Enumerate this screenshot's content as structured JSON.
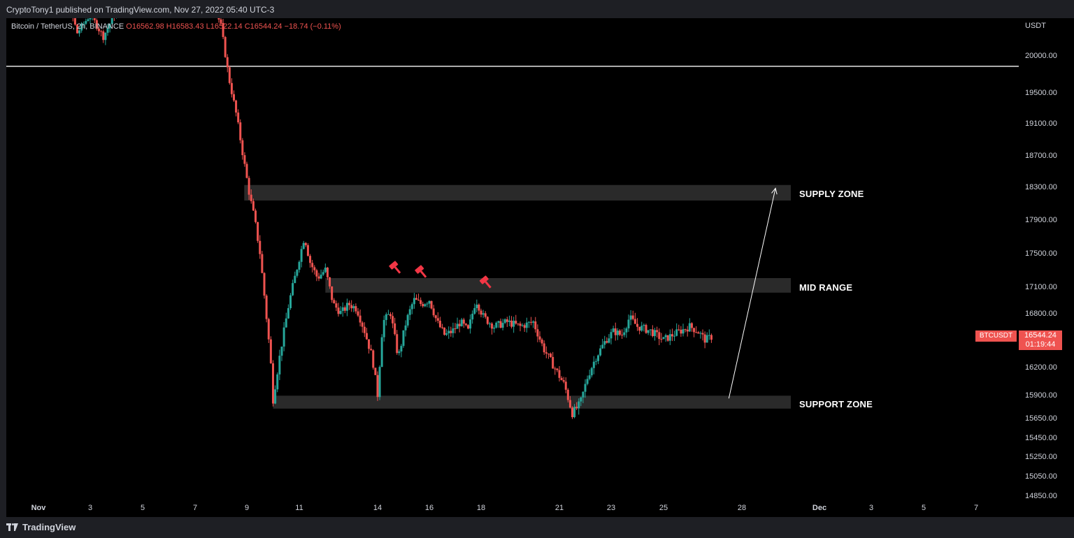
{
  "header": {
    "publisher": "CryptoTony1 published on TradingView.com, Nov 27, 2022 05:40 UTC-3"
  },
  "footer": {
    "brand": "TradingView"
  },
  "legend": {
    "symbol": "Bitcoin / TetherUS, 2h, BINANCE",
    "o": "O16562.98",
    "h": "H16583.43",
    "l": "L16522.14",
    "c": "C16544.24",
    "change": "−18.74 (−0.11%)"
  },
  "price_axis": {
    "unit": "USDT"
  },
  "last_price": {
    "symbol": "BTCUSDT",
    "price": "16544.24",
    "countdown": "01:19:44"
  },
  "zones": {
    "supply": "SUPPLY ZONE",
    "mid": "MID RANGE",
    "support": "SUPPORT ZONE"
  },
  "colors": {
    "background": "#000000",
    "bull": "#26a69a",
    "bear": "#ef5350",
    "zone": "#2a2a2a",
    "label": "#ffffff"
  },
  "chart_data": {
    "type": "candlestick",
    "title": "Bitcoin / TetherUS, 2h, BINANCE",
    "y_ticks": [
      20000,
      19500,
      19100,
      18700,
      18300,
      17900,
      17500,
      17100,
      16800,
      16200,
      15900,
      15650,
      15450,
      15250,
      15050,
      14850
    ],
    "y_tick_labels": [
      "20000.00",
      "19500.00",
      "19100.00",
      "18700.00",
      "18300.00",
      "17900.00",
      "17500.00",
      "17100.00",
      "16800.00",
      "16200.00",
      "15900.00",
      "15650.00",
      "15450.00",
      "15250.00",
      "15050.00",
      "14850.00"
    ],
    "x_tick_labels": [
      "Nov",
      "3",
      "5",
      "7",
      "9",
      "11",
      "14",
      "16",
      "18",
      "21",
      "23",
      "25",
      "28",
      "Dec",
      "3",
      "5",
      "7"
    ],
    "x_ticks_day": [
      1,
      3,
      5,
      7,
      9,
      11,
      14,
      16,
      18,
      21,
      23,
      25,
      28,
      31,
      33,
      35,
      37
    ],
    "horizontal_line": 19850,
    "zones": [
      {
        "name": "SUPPLY ZONE",
        "low": 18130,
        "high": 18320
      },
      {
        "name": "MID RANGE",
        "low": 17030,
        "high": 17200
      },
      {
        "name": "SUPPORT ZONE",
        "low": 15750,
        "high": 15890
      }
    ],
    "arrow": {
      "from_day": 27.5,
      "from_price": 15860,
      "to_day": 29.3,
      "to_price": 18280
    },
    "markers_day": [
      14.3,
      15.3,
      17.8
    ],
    "series": [
      {
        "day": 1.0,
        "price": 20700
      },
      {
        "day": 2.0,
        "price": 20900
      },
      {
        "day": 2.5,
        "price": 20300
      },
      {
        "day": 3.0,
        "price": 20550
      },
      {
        "day": 3.5,
        "price": 20250
      },
      {
        "day": 4.0,
        "price": 20600
      },
      {
        "day": 4.5,
        "price": 20900
      },
      {
        "day": 5.0,
        "price": 21000
      },
      {
        "day": 6.0,
        "price": 21100
      },
      {
        "day": 7.0,
        "price": 21050
      },
      {
        "day": 7.5,
        "price": 20900
      },
      {
        "day": 8.0,
        "price": 20400
      },
      {
        "day": 8.3,
        "price": 19700
      },
      {
        "day": 8.6,
        "price": 19200
      },
      {
        "day": 8.9,
        "price": 18600
      },
      {
        "day": 9.1,
        "price": 18200
      },
      {
        "day": 9.3,
        "price": 17900
      },
      {
        "day": 9.5,
        "price": 17500
      },
      {
        "day": 9.7,
        "price": 16900
      },
      {
        "day": 9.9,
        "price": 16300
      },
      {
        "day": 10.0,
        "price": 15850
      },
      {
        "day": 10.3,
        "price": 16400
      },
      {
        "day": 10.6,
        "price": 16900
      },
      {
        "day": 10.9,
        "price": 17300
      },
      {
        "day": 11.2,
        "price": 17700
      },
      {
        "day": 11.4,
        "price": 17400
      },
      {
        "day": 11.7,
        "price": 17200
      },
      {
        "day": 12.0,
        "price": 17300
      },
      {
        "day": 12.3,
        "price": 16900
      },
      {
        "day": 12.6,
        "price": 16800
      },
      {
        "day": 12.9,
        "price": 16900
      },
      {
        "day": 13.2,
        "price": 16850
      },
      {
        "day": 13.5,
        "price": 16600
      },
      {
        "day": 13.8,
        "price": 16300
      },
      {
        "day": 14.0,
        "price": 15900
      },
      {
        "day": 14.2,
        "price": 16700
      },
      {
        "day": 14.5,
        "price": 16800
      },
      {
        "day": 14.8,
        "price": 16300
      },
      {
        "day": 15.1,
        "price": 16700
      },
      {
        "day": 15.4,
        "price": 16950
      },
      {
        "day": 15.7,
        "price": 16900
      },
      {
        "day": 16.0,
        "price": 16950
      },
      {
        "day": 16.3,
        "price": 16700
      },
      {
        "day": 16.6,
        "price": 16550
      },
      {
        "day": 16.9,
        "price": 16600
      },
      {
        "day": 17.2,
        "price": 16700
      },
      {
        "day": 17.5,
        "price": 16600
      },
      {
        "day": 17.8,
        "price": 16950
      },
      {
        "day": 18.1,
        "price": 16750
      },
      {
        "day": 18.5,
        "price": 16650
      },
      {
        "day": 19.0,
        "price": 16700
      },
      {
        "day": 19.5,
        "price": 16650
      },
      {
        "day": 20.0,
        "price": 16700
      },
      {
        "day": 20.4,
        "price": 16400
      },
      {
        "day": 20.8,
        "price": 16200
      },
      {
        "day": 21.2,
        "price": 16000
      },
      {
        "day": 21.5,
        "price": 15700
      },
      {
        "day": 21.8,
        "price": 15800
      },
      {
        "day": 22.1,
        "price": 16100
      },
      {
        "day": 22.4,
        "price": 16300
      },
      {
        "day": 22.8,
        "price": 16500
      },
      {
        "day": 23.1,
        "price": 16600
      },
      {
        "day": 23.4,
        "price": 16550
      },
      {
        "day": 23.7,
        "price": 16750
      },
      {
        "day": 24.0,
        "price": 16650
      },
      {
        "day": 24.5,
        "price": 16600
      },
      {
        "day": 25.0,
        "price": 16500
      },
      {
        "day": 25.5,
        "price": 16580
      },
      {
        "day": 26.0,
        "price": 16650
      },
      {
        "day": 26.3,
        "price": 16600
      },
      {
        "day": 26.6,
        "price": 16500
      },
      {
        "day": 26.9,
        "price": 16544
      }
    ]
  }
}
